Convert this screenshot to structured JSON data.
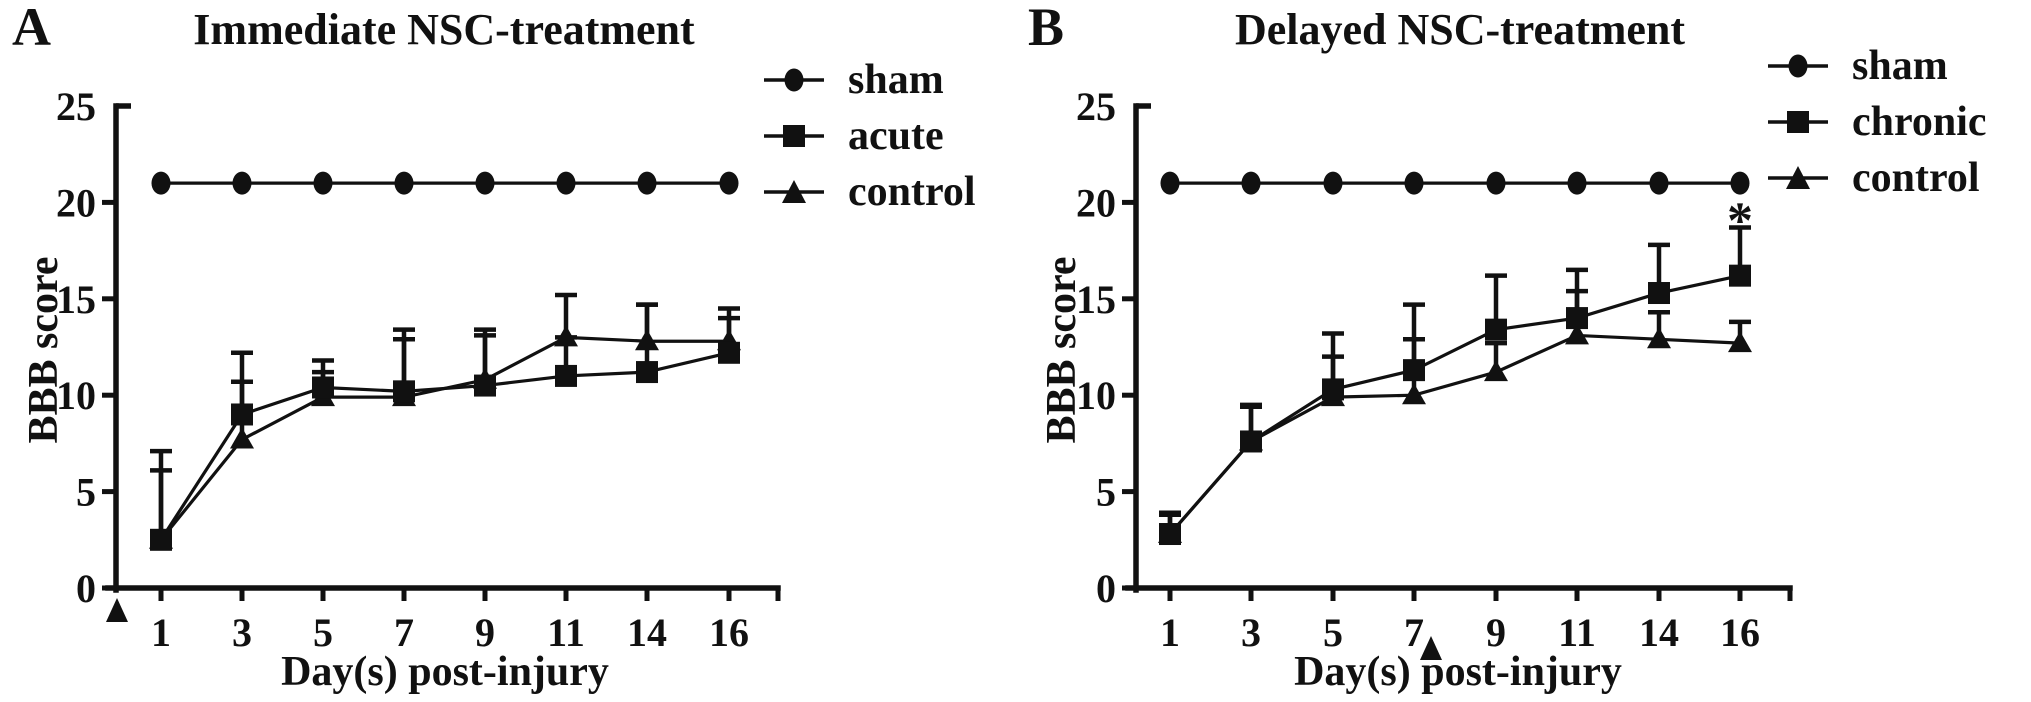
{
  "figure": {
    "background": "#ffffff",
    "ink": "#111111",
    "description": "BBB locomotor score time-course after spinal cord injury, two panels"
  },
  "panels": [
    {
      "panel_label": "A",
      "title": "Immediate NSC-treatment",
      "ylabel": "BBB score",
      "xlabel": "Day(s) post-injury",
      "legend": [
        {
          "label": "sham",
          "marker": "circle"
        },
        {
          "label": "acute",
          "marker": "square"
        },
        {
          "label": "control",
          "marker": "triangle"
        }
      ]
    },
    {
      "panel_label": "B",
      "title": "Delayed NSC-treatment",
      "ylabel": "BBB score",
      "xlabel": "Day(s) post-injury",
      "legend": [
        {
          "label": "sham",
          "marker": "circle"
        },
        {
          "label": "chronic",
          "marker": "square"
        },
        {
          "label": "control",
          "marker": "triangle"
        }
      ]
    }
  ],
  "chart_data": [
    {
      "type": "line",
      "title": "Immediate NSC-treatment",
      "xlabel": "Day(s) post-injury",
      "ylabel": "BBB score",
      "x": [
        1,
        3,
        5,
        7,
        9,
        11,
        14,
        16
      ],
      "x_tick_labels": [
        "1",
        "3",
        "5",
        "7",
        "9",
        "11",
        "14",
        "16"
      ],
      "ylim": [
        0,
        25
      ],
      "y_ticks": [
        0,
        5,
        10,
        15,
        20,
        25
      ],
      "grid": false,
      "legend_position": "right-top",
      "series": [
        {
          "name": "sham",
          "marker": "circle",
          "values": [
            21,
            21,
            21,
            21,
            21,
            21,
            21,
            21
          ],
          "err_up": [
            0,
            0,
            0,
            0,
            0,
            0,
            0,
            0
          ]
        },
        {
          "name": "acute",
          "marker": "square",
          "values": [
            2.5,
            9.0,
            10.4,
            10.2,
            10.5,
            11.0,
            11.2,
            12.2
          ],
          "err_up": [
            4.6,
            3.2,
            1.4,
            3.2,
            2.9,
            2.0,
            3.5,
            2.3
          ]
        },
        {
          "name": "control",
          "marker": "triangle",
          "values": [
            2.5,
            7.7,
            9.9,
            9.9,
            10.8,
            13.0,
            12.8,
            12.8
          ],
          "err_up": [
            3.6,
            3.0,
            1.3,
            3.0,
            2.3,
            2.2,
            1.9,
            1.2
          ]
        }
      ],
      "treatment_arrow": {
        "symbol": "filled-triangle-up",
        "position": "below x-axis at day 0 (origin)"
      },
      "annotations": []
    },
    {
      "type": "line",
      "title": "Delayed NSC-treatment",
      "xlabel": "Day(s) post-injury",
      "ylabel": "BBB score",
      "x": [
        1,
        3,
        5,
        7,
        9,
        11,
        14,
        16
      ],
      "x_tick_labels": [
        "1",
        "3",
        "5",
        "7",
        "9",
        "11",
        "14",
        "16"
      ],
      "ylim": [
        0,
        25
      ],
      "y_ticks": [
        0,
        5,
        10,
        15,
        20,
        25
      ],
      "grid": false,
      "legend_position": "right-top",
      "series": [
        {
          "name": "sham",
          "marker": "circle",
          "values": [
            21,
            21,
            21,
            21,
            21,
            21,
            21,
            21
          ],
          "err_up": [
            0,
            0,
            0,
            0,
            0,
            0,
            0,
            0
          ]
        },
        {
          "name": "chronic",
          "marker": "square",
          "values": [
            2.8,
            7.6,
            10.3,
            11.3,
            13.4,
            14.0,
            15.3,
            16.2
          ],
          "err_up": [
            1.1,
            1.9,
            2.9,
            3.4,
            2.8,
            2.5,
            2.5,
            2.5
          ]
        },
        {
          "name": "control",
          "marker": "triangle",
          "values": [
            2.8,
            7.6,
            9.9,
            10.0,
            11.2,
            13.1,
            12.9,
            12.7
          ],
          "err_up": [
            1.0,
            1.8,
            2.1,
            2.9,
            1.5,
            2.3,
            1.4,
            1.1
          ]
        }
      ],
      "treatment_arrow": {
        "symbol": "filled-triangle-up",
        "position": "below x-axis at day 7"
      },
      "annotations": [
        {
          "symbol": "*",
          "x": 16,
          "series": "chronic",
          "meaning": "significance marker above day-16 error bar"
        }
      ]
    }
  ]
}
